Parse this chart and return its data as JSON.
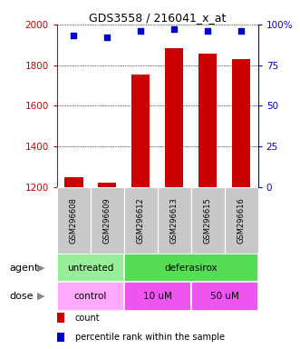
{
  "title": "GDS3558 / 216041_x_at",
  "samples": [
    "GSM296608",
    "GSM296609",
    "GSM296612",
    "GSM296613",
    "GSM296615",
    "GSM296616"
  ],
  "bar_values": [
    1248,
    1220,
    1755,
    1885,
    1855,
    1830
  ],
  "dot_values": [
    93,
    92,
    96,
    97,
    96,
    96
  ],
  "ylim_left": [
    1200,
    2000
  ],
  "ylim_right": [
    0,
    100
  ],
  "yticks_left": [
    1200,
    1400,
    1600,
    1800,
    2000
  ],
  "yticks_right": [
    0,
    25,
    50,
    75,
    100
  ],
  "bar_color": "#cc0000",
  "dot_color": "#0000cc",
  "tick_label_color_left": "#cc0000",
  "tick_label_color_right": "#0000cc",
  "xticklabel_bg": "#c8c8c8",
  "agent_groups": [
    {
      "text": "untreated",
      "start": 0,
      "end": 2,
      "color": "#99ee99"
    },
    {
      "text": "deferasirox",
      "start": 2,
      "end": 6,
      "color": "#55dd55"
    }
  ],
  "dose_groups": [
    {
      "text": "control",
      "start": 0,
      "end": 2,
      "color": "#ffaaff"
    },
    {
      "text": "10 uM",
      "start": 2,
      "end": 4,
      "color": "#ee55ee"
    },
    {
      "text": "50 uM",
      "start": 4,
      "end": 6,
      "color": "#ee55ee"
    }
  ],
  "legend": [
    {
      "label": "count",
      "color": "#cc0000"
    },
    {
      "label": "percentile rank within the sample",
      "color": "#0000cc"
    }
  ]
}
